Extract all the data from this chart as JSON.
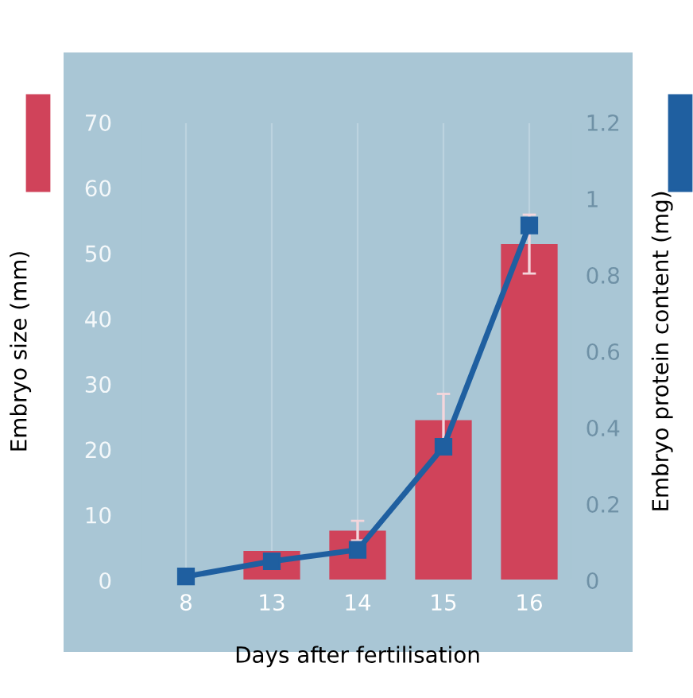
{
  "chart_data": {
    "type": "bar",
    "xlabel": "Days after fertilisation",
    "ylabel": "Embryo size (mm)",
    "y2label": "Embryo protein content (mg)",
    "categories": [
      "8",
      "13",
      "14",
      "15",
      "16"
    ],
    "series": [
      {
        "color": "#d0435a",
        "values": [
          0,
          4.5,
          7.6,
          24.5,
          51.4
        ],
        "errors": [
          null,
          null,
          1.5,
          4,
          4.5
        ]
      },
      {
        "type": "line",
        "axis": "y2",
        "color": "#1f5fa0",
        "values": [
          0.01,
          0.05,
          0.08,
          0.35,
          0.93
        ],
        "marker": "square",
        "line_style": "solid"
      }
    ],
    "ylim": [
      0,
      70
    ],
    "yticks": [
      0,
      10,
      20,
      30,
      40,
      50,
      60,
      70
    ],
    "y2lim": [
      0,
      1.2
    ],
    "y2ticks": [
      0,
      0.2,
      0.4,
      0.6,
      0.8,
      1,
      1.2
    ],
    "grid": "x",
    "legend": false
  }
}
